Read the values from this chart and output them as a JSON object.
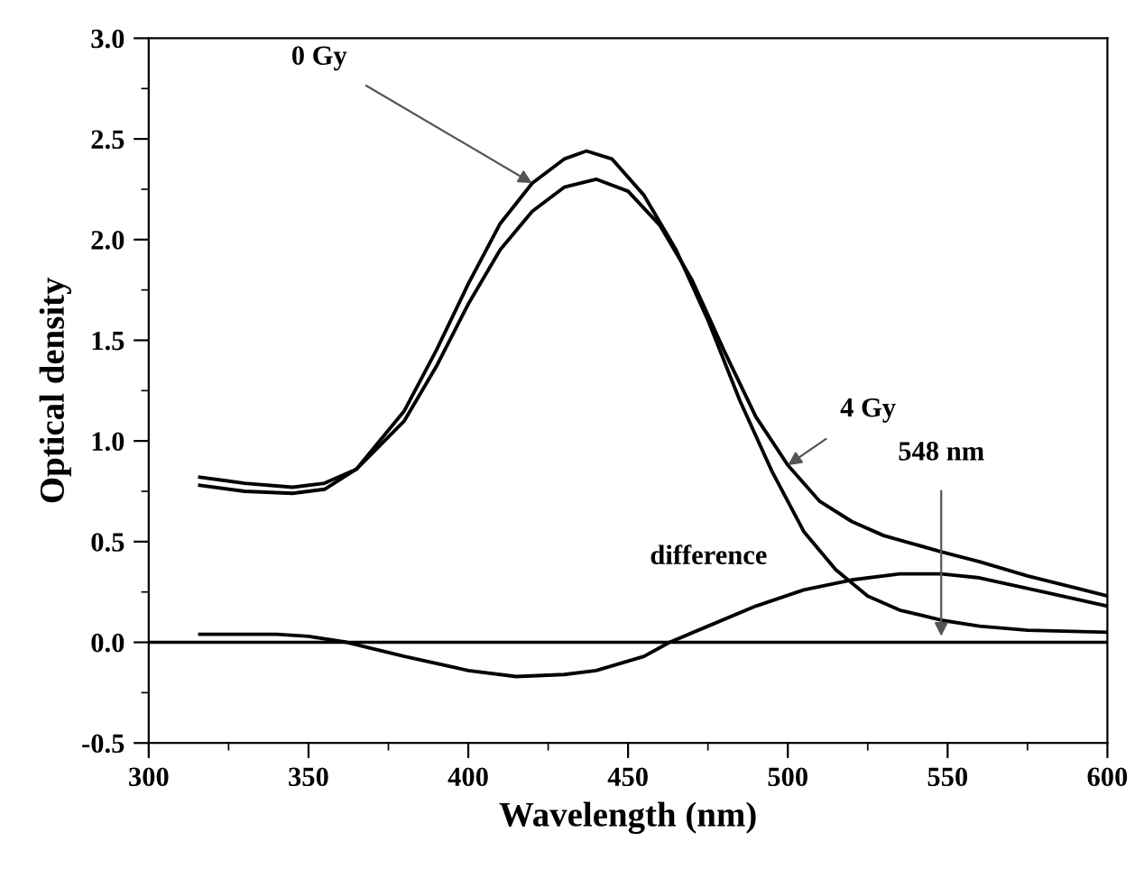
{
  "chart_data": {
    "type": "line",
    "xlabel": "Wavelength (nm)",
    "ylabel": "Optical density",
    "xlim": [
      300,
      600
    ],
    "ylim": [
      -0.5,
      3.0
    ],
    "xticks": [
      300,
      350,
      400,
      450,
      500,
      550,
      600
    ],
    "yticks": [
      {
        "value": -0.5,
        "label": "-0.5"
      },
      {
        "value": 0,
        "label": "0.0"
      },
      {
        "value": 0.5,
        "label": "0.5"
      },
      {
        "value": 1,
        "label": "1.0"
      },
      {
        "value": 1.5,
        "label": "1.5"
      },
      {
        "value": 2,
        "label": "2.0"
      },
      {
        "value": 2.5,
        "label": "2.5"
      },
      {
        "value": 3,
        "label": "3.0"
      }
    ],
    "grid": false,
    "legend": false,
    "marker": "none",
    "line_style": "solid",
    "series": [
      {
        "name": "0 Gy",
        "color": "#000000",
        "x": [
          316,
          330,
          345,
          355,
          365,
          380,
          390,
          400,
          410,
          420,
          430,
          437,
          445,
          455,
          465,
          475,
          485,
          495,
          505,
          515,
          525,
          535,
          548,
          560,
          575,
          600
        ],
        "values": [
          0.78,
          0.75,
          0.74,
          0.76,
          0.86,
          1.15,
          1.45,
          1.78,
          2.08,
          2.28,
          2.4,
          2.44,
          2.4,
          2.22,
          1.95,
          1.6,
          1.2,
          0.85,
          0.55,
          0.36,
          0.23,
          0.16,
          0.11,
          0.08,
          0.06,
          0.05
        ]
      },
      {
        "name": "4 Gy",
        "color": "#000000",
        "x": [
          316,
          330,
          345,
          355,
          365,
          380,
          390,
          400,
          410,
          420,
          430,
          440,
          450,
          460,
          470,
          480,
          490,
          500,
          510,
          520,
          530,
          548,
          560,
          575,
          590,
          600
        ],
        "values": [
          0.82,
          0.79,
          0.77,
          0.79,
          0.86,
          1.1,
          1.37,
          1.68,
          1.95,
          2.14,
          2.26,
          2.3,
          2.24,
          2.07,
          1.8,
          1.45,
          1.12,
          0.88,
          0.7,
          0.6,
          0.53,
          0.45,
          0.4,
          0.33,
          0.27,
          0.23
        ]
      },
      {
        "name": "difference",
        "color": "#000000",
        "x": [
          316,
          340,
          350,
          362,
          380,
          400,
          415,
          430,
          440,
          455,
          463,
          475,
          490,
          505,
          520,
          535,
          548,
          560,
          580,
          600
        ],
        "values": [
          0.04,
          0.04,
          0.03,
          0.0,
          -0.07,
          -0.14,
          -0.17,
          -0.16,
          -0.14,
          -0.07,
          0.0,
          0.08,
          0.18,
          0.26,
          0.31,
          0.34,
          0.34,
          0.32,
          0.25,
          0.18
        ]
      }
    ],
    "ref_lines": [
      {
        "axis": "y",
        "value": 0.0,
        "color": "#000000",
        "line_style": "solid"
      }
    ],
    "annotations": [
      {
        "text": "548 nm",
        "x": 548,
        "y": 0.03
      }
    ]
  }
}
